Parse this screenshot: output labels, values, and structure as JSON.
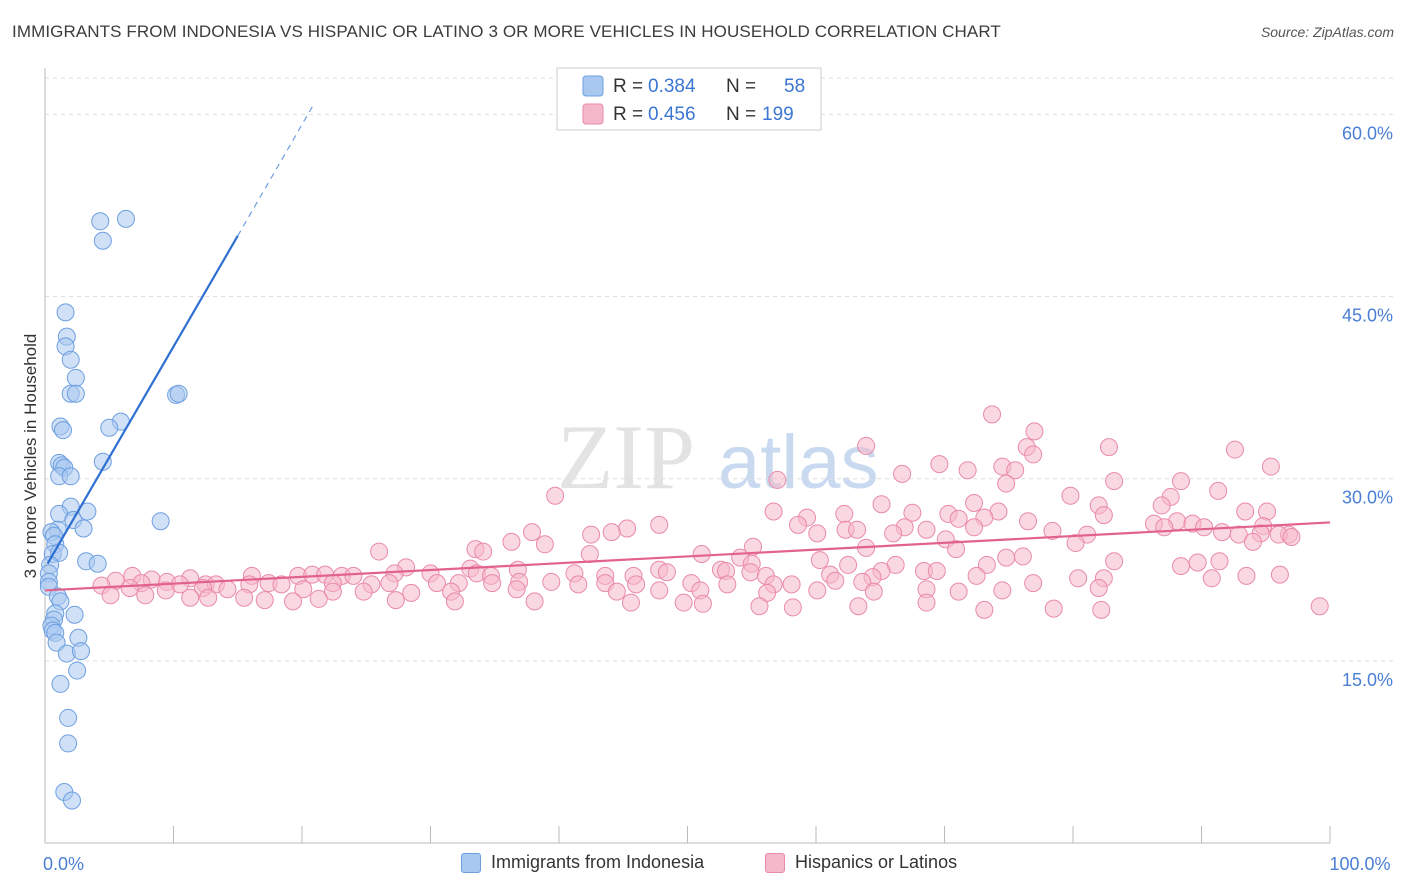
{
  "title": "IMMIGRANTS FROM INDONESIA VS HISPANIC OR LATINO 3 OR MORE VEHICLES IN HOUSEHOLD CORRELATION CHART",
  "source": "Source: ZipAtlas.com",
  "watermark": {
    "zip": "ZIP",
    "atlas": "atlas"
  },
  "colors": {
    "blue_fill": "#a9c8f0",
    "blue_stroke": "#6d9fe0",
    "blue_line": "#2e6fd1",
    "pink_fill": "#f5b8cb",
    "pink_stroke": "#e98aa9",
    "pink_line": "#e2628f",
    "tick_label": "#4a7fd4",
    "grid": "#dddddd"
  },
  "stats_legend": {
    "rows": [
      {
        "r_label": "R =",
        "r_value": "0.384",
        "n_label": "N =",
        "n_value": "58",
        "series": "blue"
      },
      {
        "r_label": "R =",
        "r_value": "0.456",
        "n_label": "N =",
        "n_value": "199",
        "series": "pink"
      }
    ]
  },
  "bottom_legend": [
    {
      "label": "Immigrants from Indonesia",
      "series": "blue"
    },
    {
      "label": "Hispanics or Latinos",
      "series": "pink"
    }
  ],
  "chart_data": {
    "type": "scatter",
    "title": "IMMIGRANTS FROM INDONESIA VS HISPANIC OR LATINO 3 OR MORE VEHICLES IN HOUSEHOLD CORRELATION CHART",
    "xlabel": "",
    "ylabel": "3 or more Vehicles in Household",
    "xlim": [
      0,
      100
    ],
    "ylim": [
      0,
      63
    ],
    "x_tick_labels": [
      {
        "value": 0,
        "label": "0.0%"
      },
      {
        "value": 100,
        "label": "100.0%"
      }
    ],
    "y_ticks": [
      {
        "value": 15,
        "label": "15.0%"
      },
      {
        "value": 30,
        "label": "30.0%"
      },
      {
        "value": 45,
        "label": "45.0%"
      },
      {
        "value": 60,
        "label": "60.0%"
      }
    ],
    "x_minor_ticks": [
      0,
      10,
      20,
      30,
      40,
      50,
      60,
      70,
      80,
      90,
      100
    ],
    "grid": true,
    "series": [
      {
        "name": "Immigrants from Indonesia",
        "color": "blue",
        "R": 0.384,
        "N": 58,
        "trend": {
          "x0": 0.2,
          "y0": 23.0,
          "x1": 15.0,
          "y1": 50.0,
          "dashed_to_x": 21.0,
          "dashed_to_y": 61.0
        },
        "points": [
          [
            4.3,
            51.2
          ],
          [
            6.3,
            51.4
          ],
          [
            4.5,
            49.6
          ],
          [
            1.6,
            43.7
          ],
          [
            1.7,
            41.7
          ],
          [
            1.6,
            40.9
          ],
          [
            2.0,
            39.8
          ],
          [
            2.4,
            38.3
          ],
          [
            2.0,
            37.0
          ],
          [
            2.4,
            37.0
          ],
          [
            10.2,
            36.9
          ],
          [
            10.4,
            37.0
          ],
          [
            5.9,
            34.7
          ],
          [
            5.0,
            34.2
          ],
          [
            1.2,
            34.3
          ],
          [
            1.4,
            34.0
          ],
          [
            4.5,
            31.4
          ],
          [
            1.1,
            31.3
          ],
          [
            1.3,
            31.1
          ],
          [
            1.5,
            30.9
          ],
          [
            1.1,
            30.2
          ],
          [
            2.0,
            30.2
          ],
          [
            2.0,
            27.7
          ],
          [
            3.3,
            27.3
          ],
          [
            1.1,
            27.1
          ],
          [
            9.0,
            26.5
          ],
          [
            2.2,
            26.6
          ],
          [
            1.0,
            25.8
          ],
          [
            3.0,
            25.9
          ],
          [
            0.5,
            25.6
          ],
          [
            0.7,
            25.3
          ],
          [
            0.8,
            24.6
          ],
          [
            0.6,
            23.8
          ],
          [
            1.1,
            23.9
          ],
          [
            3.2,
            23.2
          ],
          [
            4.1,
            23.0
          ],
          [
            0.4,
            22.9
          ],
          [
            0.3,
            22.2
          ],
          [
            0.3,
            21.5
          ],
          [
            0.3,
            21.1
          ],
          [
            1.0,
            20.3
          ],
          [
            1.2,
            19.9
          ],
          [
            0.8,
            18.9
          ],
          [
            0.7,
            18.4
          ],
          [
            2.3,
            18.8
          ],
          [
            0.5,
            17.9
          ],
          [
            0.6,
            17.5
          ],
          [
            0.8,
            17.3
          ],
          [
            2.6,
            16.9
          ],
          [
            0.9,
            16.5
          ],
          [
            1.7,
            15.6
          ],
          [
            2.8,
            15.8
          ],
          [
            2.5,
            14.2
          ],
          [
            1.2,
            13.1
          ],
          [
            1.8,
            10.3
          ],
          [
            1.8,
            8.2
          ],
          [
            1.5,
            4.2
          ],
          [
            2.1,
            3.5
          ]
        ]
      },
      {
        "name": "Hispanics or Latinos",
        "color": "pink",
        "R": 0.456,
        "N": 199,
        "trend": {
          "x0": 0.0,
          "y0": 20.8,
          "x1": 100.0,
          "y1": 26.4
        },
        "points": [
          [
            73.7,
            35.3
          ],
          [
            77.0,
            33.9
          ],
          [
            82.8,
            32.6
          ],
          [
            63.9,
            32.7
          ],
          [
            76.4,
            32.6
          ],
          [
            76.9,
            32.0
          ],
          [
            92.6,
            32.4
          ],
          [
            69.6,
            31.2
          ],
          [
            74.5,
            31.0
          ],
          [
            95.4,
            31.0
          ],
          [
            71.8,
            30.7
          ],
          [
            75.5,
            30.7
          ],
          [
            66.7,
            30.4
          ],
          [
            57.0,
            29.9
          ],
          [
            83.2,
            29.8
          ],
          [
            88.4,
            29.8
          ],
          [
            74.8,
            29.6
          ],
          [
            91.3,
            29.0
          ],
          [
            79.8,
            28.6
          ],
          [
            87.6,
            28.5
          ],
          [
            39.7,
            28.6
          ],
          [
            65.1,
            27.9
          ],
          [
            72.3,
            28.0
          ],
          [
            86.9,
            27.8
          ],
          [
            82.0,
            27.8
          ],
          [
            93.4,
            27.3
          ],
          [
            95.1,
            27.3
          ],
          [
            56.7,
            27.3
          ],
          [
            62.2,
            27.1
          ],
          [
            67.5,
            27.2
          ],
          [
            70.3,
            27.1
          ],
          [
            74.2,
            27.3
          ],
          [
            82.4,
            27.0
          ],
          [
            59.3,
            26.8
          ],
          [
            71.1,
            26.7
          ],
          [
            73.1,
            26.8
          ],
          [
            76.5,
            26.5
          ],
          [
            88.1,
            26.5
          ],
          [
            86.3,
            26.3
          ],
          [
            89.3,
            26.3
          ],
          [
            58.6,
            26.2
          ],
          [
            66.9,
            26.0
          ],
          [
            72.3,
            26.0
          ],
          [
            87.1,
            26.0
          ],
          [
            90.2,
            26.0
          ],
          [
            94.8,
            26.1
          ],
          [
            47.8,
            26.2
          ],
          [
            45.3,
            25.9
          ],
          [
            62.3,
            25.8
          ],
          [
            63.2,
            25.8
          ],
          [
            68.6,
            25.8
          ],
          [
            78.4,
            25.7
          ],
          [
            91.6,
            25.6
          ],
          [
            94.6,
            25.5
          ],
          [
            96.8,
            25.4
          ],
          [
            37.9,
            25.6
          ],
          [
            44.1,
            25.6
          ],
          [
            60.1,
            25.5
          ],
          [
            66.0,
            25.5
          ],
          [
            81.1,
            25.4
          ],
          [
            42.5,
            25.4
          ],
          [
            92.9,
            25.4
          ],
          [
            96.0,
            25.4
          ],
          [
            70.1,
            25.0
          ],
          [
            80.2,
            24.7
          ],
          [
            94.0,
            24.8
          ],
          [
            97.0,
            25.2
          ],
          [
            36.3,
            24.8
          ],
          [
            38.9,
            24.6
          ],
          [
            55.1,
            24.4
          ],
          [
            63.9,
            24.3
          ],
          [
            70.9,
            24.2
          ],
          [
            33.5,
            24.2
          ],
          [
            34.1,
            24.0
          ],
          [
            26.0,
            24.0
          ],
          [
            42.4,
            23.8
          ],
          [
            51.1,
            23.8
          ],
          [
            54.1,
            23.5
          ],
          [
            60.3,
            23.3
          ],
          [
            74.8,
            23.5
          ],
          [
            76.1,
            23.6
          ],
          [
            83.2,
            23.2
          ],
          [
            89.7,
            23.1
          ],
          [
            91.4,
            23.2
          ],
          [
            55.0,
            23.0
          ],
          [
            62.5,
            22.9
          ],
          [
            66.2,
            22.9
          ],
          [
            73.3,
            22.9
          ],
          [
            88.4,
            22.8
          ],
          [
            47.8,
            22.5
          ],
          [
            52.6,
            22.5
          ],
          [
            54.9,
            22.3
          ],
          [
            65.1,
            22.4
          ],
          [
            68.4,
            22.4
          ],
          [
            69.4,
            22.4
          ],
          [
            33.1,
            22.6
          ],
          [
            36.8,
            22.5
          ],
          [
            28.1,
            22.7
          ],
          [
            33.6,
            22.2
          ],
          [
            30.0,
            22.2
          ],
          [
            34.7,
            22.0
          ],
          [
            45.8,
            22.0
          ],
          [
            41.2,
            22.2
          ],
          [
            43.6,
            22.0
          ],
          [
            48.4,
            22.3
          ],
          [
            53.0,
            22.4
          ],
          [
            56.1,
            22.0
          ],
          [
            61.1,
            22.1
          ],
          [
            64.4,
            21.9
          ],
          [
            72.5,
            22.0
          ],
          [
            80.4,
            21.8
          ],
          [
            82.4,
            21.8
          ],
          [
            90.8,
            21.8
          ],
          [
            93.5,
            22.0
          ],
          [
            96.1,
            22.1
          ],
          [
            16.1,
            22.0
          ],
          [
            19.7,
            22.0
          ],
          [
            20.8,
            22.1
          ],
          [
            23.1,
            22.0
          ],
          [
            24.0,
            22.0
          ],
          [
            27.2,
            22.2
          ],
          [
            21.8,
            22.1
          ],
          [
            6.8,
            22.0
          ],
          [
            8.3,
            21.7
          ],
          [
            11.3,
            21.8
          ],
          [
            5.5,
            21.6
          ],
          [
            7.5,
            21.4
          ],
          [
            9.5,
            21.5
          ],
          [
            10.5,
            21.3
          ],
          [
            12.5,
            21.3
          ],
          [
            13.3,
            21.3
          ],
          [
            15.9,
            21.3
          ],
          [
            17.4,
            21.4
          ],
          [
            18.4,
            21.3
          ],
          [
            22.4,
            21.4
          ],
          [
            25.4,
            21.3
          ],
          [
            26.8,
            21.4
          ],
          [
            30.5,
            21.4
          ],
          [
            32.2,
            21.4
          ],
          [
            34.8,
            21.4
          ],
          [
            36.9,
            21.5
          ],
          [
            39.4,
            21.5
          ],
          [
            41.5,
            21.3
          ],
          [
            43.6,
            21.4
          ],
          [
            46.0,
            21.3
          ],
          [
            50.3,
            21.4
          ],
          [
            53.1,
            21.3
          ],
          [
            56.7,
            21.3
          ],
          [
            58.1,
            21.3
          ],
          [
            61.5,
            21.6
          ],
          [
            63.6,
            21.5
          ],
          [
            4.4,
            21.2
          ],
          [
            6.6,
            21.0
          ],
          [
            12.3,
            21.0
          ],
          [
            14.2,
            20.9
          ],
          [
            9.4,
            20.8
          ],
          [
            20.1,
            20.9
          ],
          [
            22.4,
            20.7
          ],
          [
            24.8,
            20.7
          ],
          [
            28.5,
            20.6
          ],
          [
            31.6,
            20.7
          ],
          [
            36.7,
            20.9
          ],
          [
            44.5,
            20.7
          ],
          [
            47.8,
            20.8
          ],
          [
            51.0,
            20.8
          ],
          [
            56.2,
            20.6
          ],
          [
            60.1,
            20.8
          ],
          [
            64.5,
            20.7
          ],
          [
            68.6,
            20.9
          ],
          [
            71.1,
            20.7
          ],
          [
            74.5,
            20.8
          ],
          [
            76.9,
            21.4
          ],
          [
            82.0,
            21.0
          ],
          [
            5.1,
            20.4
          ],
          [
            7.8,
            20.4
          ],
          [
            11.3,
            20.2
          ],
          [
            12.7,
            20.2
          ],
          [
            15.5,
            20.2
          ],
          [
            17.1,
            20.0
          ],
          [
            19.3,
            19.9
          ],
          [
            21.3,
            20.1
          ],
          [
            27.3,
            20.0
          ],
          [
            31.9,
            19.9
          ],
          [
            38.1,
            19.9
          ],
          [
            45.6,
            19.8
          ],
          [
            49.7,
            19.8
          ],
          [
            51.2,
            19.7
          ],
          [
            55.6,
            19.5
          ],
          [
            58.2,
            19.4
          ],
          [
            63.3,
            19.5
          ],
          [
            68.6,
            19.8
          ],
          [
            73.1,
            19.2
          ],
          [
            78.5,
            19.3
          ],
          [
            82.2,
            19.2
          ],
          [
            99.2,
            19.5
          ]
        ]
      }
    ]
  }
}
